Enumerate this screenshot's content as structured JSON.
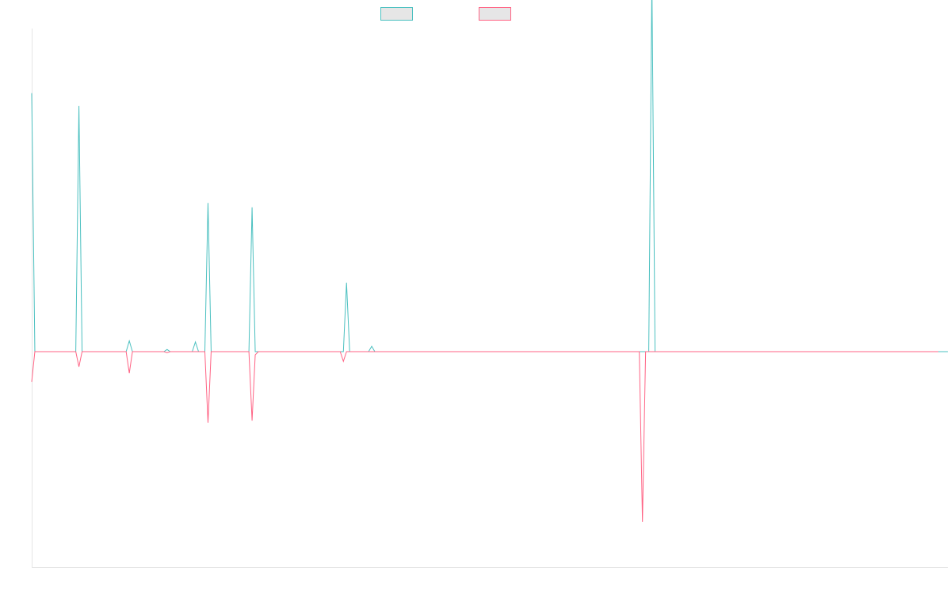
{
  "chart_data": {
    "type": "line",
    "title": "",
    "xlabel": "",
    "ylabel": "",
    "ylim": [
      -1,
      1.5
    ],
    "grid": false,
    "legend_position": "top-center",
    "colors": {
      "positive": "#4bc0c0",
      "negative": "#ff6384",
      "legend_fill": "#e6e6e6"
    },
    "series": [
      {
        "name": "",
        "color": "#4bc0c0",
        "values": [
          1.2,
          0,
          0,
          0,
          0,
          0,
          0,
          0,
          0,
          0,
          0,
          0,
          0,
          0,
          0,
          1.14,
          0,
          0,
          0,
          0,
          0,
          0,
          0,
          0,
          0,
          0,
          0,
          0,
          0,
          0,
          0,
          0.05,
          0,
          0,
          0,
          0,
          0,
          0,
          0,
          0,
          0,
          0,
          0,
          0.01,
          0,
          0,
          0,
          0,
          0,
          0,
          0,
          0,
          0.045,
          0,
          0,
          0,
          0.69,
          0,
          0,
          0,
          0,
          0,
          0,
          0,
          0,
          0,
          0,
          0,
          0,
          0,
          0.67,
          0,
          0,
          0,
          0,
          0,
          0,
          0,
          0,
          0,
          0,
          0,
          0,
          0,
          0,
          0,
          0,
          0,
          0,
          0,
          0,
          0,
          0,
          0,
          0,
          0,
          0,
          0,
          0,
          0,
          0.32,
          0,
          0,
          0,
          0,
          0,
          0,
          0,
          0.025,
          0,
          0,
          0,
          0,
          0,
          0,
          0,
          0,
          0,
          0,
          0,
          0,
          0,
          0,
          0,
          0,
          0,
          0,
          0,
          0,
          0,
          0,
          0,
          0,
          0,
          0,
          0,
          0,
          0,
          0,
          0,
          0,
          0,
          0,
          0,
          0,
          0,
          0,
          0,
          0,
          0,
          0,
          0,
          0,
          0,
          0,
          0,
          0,
          0,
          0,
          0,
          0,
          0,
          0,
          0,
          0,
          0,
          0,
          0,
          0,
          0,
          0,
          0,
          0,
          0,
          0,
          0,
          0,
          0,
          0,
          0,
          0,
          0,
          0,
          0,
          0,
          0,
          0,
          0,
          0,
          0,
          0,
          0,
          0,
          0,
          0,
          0,
          0,
          1.72,
          0,
          0,
          0,
          0,
          0,
          0,
          0,
          0,
          0,
          0,
          0,
          0,
          0,
          0,
          0,
          0,
          0,
          0,
          0,
          0,
          0,
          0,
          0,
          0,
          0,
          0,
          0,
          0,
          0,
          0,
          0,
          0,
          0,
          0,
          0,
          0,
          0,
          0,
          0,
          0,
          0,
          0,
          0,
          0,
          0,
          0,
          0,
          0,
          0,
          0,
          0,
          0,
          0,
          0,
          0,
          0,
          0,
          0,
          0,
          0,
          0,
          0,
          0,
          0,
          0,
          0,
          0,
          0,
          0,
          0,
          0,
          0,
          0,
          0,
          0,
          0,
          0,
          0,
          0,
          0,
          0,
          0,
          0,
          0,
          0,
          0,
          0,
          0,
          0,
          0,
          0,
          0,
          0,
          0
        ]
      },
      {
        "name": "",
        "color": "#ff6384",
        "values": [
          -0.14,
          0,
          0,
          0,
          0,
          0,
          0,
          0,
          0,
          0,
          0,
          0,
          0,
          0,
          0,
          -0.07,
          0,
          0,
          0,
          0,
          0,
          0,
          0,
          0,
          0,
          0,
          0,
          0,
          0,
          0,
          0,
          -0.1,
          0,
          0,
          0,
          0,
          0,
          0,
          0,
          0,
          0,
          0,
          0,
          -0.005,
          0,
          0,
          0,
          0,
          0,
          0,
          0,
          0,
          0,
          0,
          0,
          0,
          -0.33,
          0,
          0,
          0,
          0,
          0,
          0,
          0,
          0,
          0,
          0,
          0,
          0,
          0,
          -0.32,
          -0.015,
          0,
          0,
          0,
          0,
          0,
          0,
          0,
          0,
          0,
          0,
          0,
          0,
          0,
          0,
          0,
          0,
          0,
          0,
          0,
          0,
          0,
          0,
          0,
          0,
          0,
          0,
          0,
          -0.045,
          0,
          0,
          0,
          0,
          0,
          0,
          0,
          0,
          0,
          0,
          0,
          0,
          0,
          0,
          0,
          0,
          0,
          0,
          0,
          0,
          0,
          0,
          0,
          0,
          0,
          0,
          0,
          0,
          0,
          0,
          0,
          0,
          0,
          0,
          0,
          0,
          0,
          0,
          0,
          0,
          0,
          0,
          0,
          0,
          0,
          0,
          0,
          0,
          0,
          0,
          0,
          0,
          0,
          0,
          0,
          0,
          0,
          0,
          0,
          0,
          0,
          0,
          0,
          0,
          0,
          0,
          0,
          0,
          0,
          0,
          0,
          0,
          0,
          0,
          0,
          0,
          0,
          0,
          0,
          0,
          0,
          0,
          0,
          0,
          0,
          0,
          0,
          0,
          0,
          0,
          0,
          0,
          0,
          0,
          -0.79,
          0,
          0,
          0,
          0,
          0,
          0,
          0,
          0,
          0,
          0,
          0,
          0,
          0,
          0,
          0,
          0,
          0,
          0,
          0,
          0,
          0,
          0,
          0,
          0,
          0,
          0,
          0,
          0,
          0,
          0,
          0,
          0,
          0,
          0,
          0,
          0,
          0,
          0,
          0,
          0,
          0,
          0,
          0,
          0,
          0,
          0,
          0,
          0,
          0,
          0,
          0,
          0,
          0,
          0,
          0,
          0,
          0,
          0,
          0,
          0,
          0,
          0,
          0,
          0,
          0,
          0,
          0,
          0,
          0,
          0,
          0,
          0,
          0,
          0,
          0,
          0,
          0,
          0,
          0,
          0,
          0,
          0,
          0,
          0,
          0,
          0,
          0,
          0,
          0,
          0,
          0,
          0,
          0,
          0
        ]
      }
    ]
  }
}
